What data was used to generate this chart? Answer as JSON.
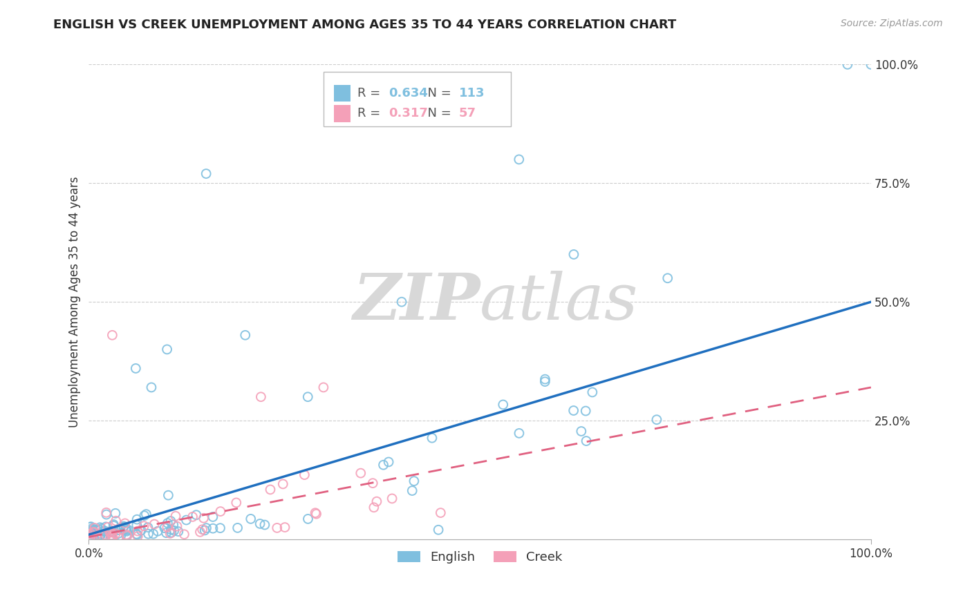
{
  "title": "ENGLISH VS CREEK UNEMPLOYMENT AMONG AGES 35 TO 44 YEARS CORRELATION CHART",
  "source": "Source: ZipAtlas.com",
  "ylabel": "Unemployment Among Ages 35 to 44 years",
  "xlim": [
    0,
    1.0
  ],
  "ylim": [
    0,
    1.0
  ],
  "english_R": 0.634,
  "english_N": 113,
  "creek_R": 0.317,
  "creek_N": 57,
  "english_color": "#7fbfdf",
  "creek_color": "#f4a0b8",
  "english_line_color": "#1f6fbf",
  "creek_line_color": "#e06080",
  "watermark_zip": "ZIP",
  "watermark_atlas": "atlas",
  "english_line_y0": 0.01,
  "english_line_y1": 0.5,
  "creek_line_y0": 0.005,
  "creek_line_y1": 0.32,
  "seed": 99
}
